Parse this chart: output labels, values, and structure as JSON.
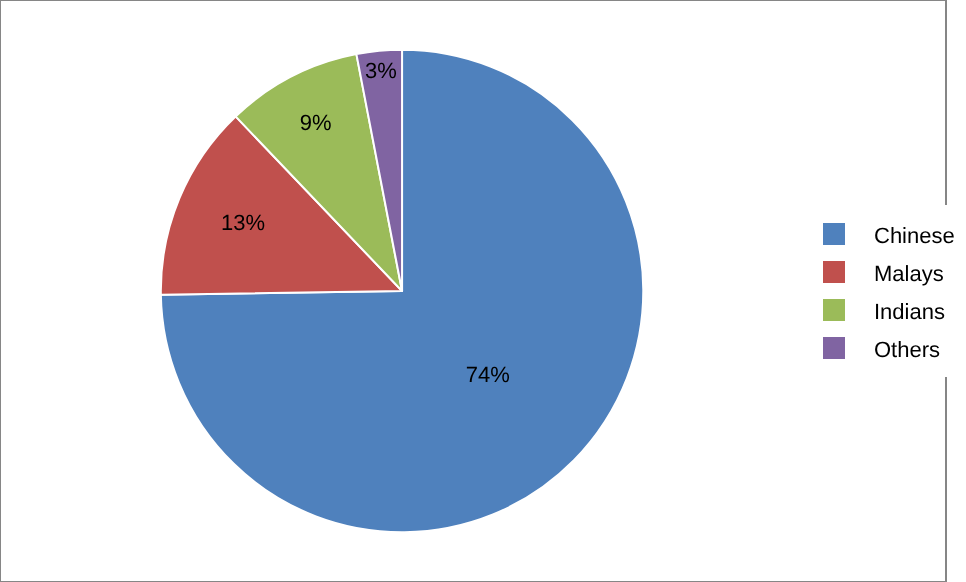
{
  "chart_data": {
    "type": "pie",
    "categories": [
      "Chinese",
      "Malays",
      "Indians",
      "Others"
    ],
    "values": [
      74,
      13,
      9,
      3
    ],
    "value_labels": [
      "74%",
      "13%",
      "9%",
      "3%"
    ],
    "colors": [
      "#4f81bd",
      "#c0504d",
      "#9bbb59",
      "#8064a2"
    ],
    "legend": "right"
  }
}
